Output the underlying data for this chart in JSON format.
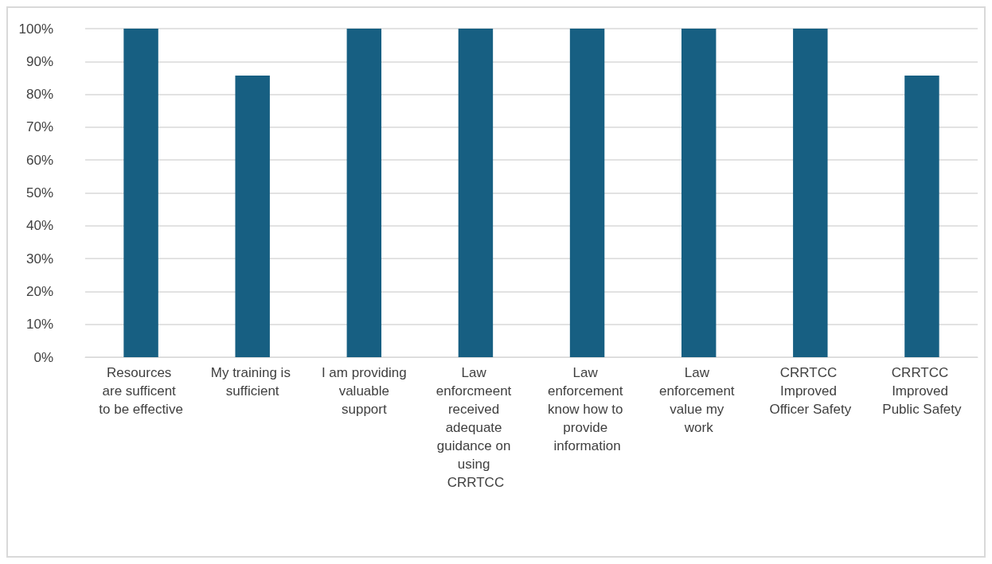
{
  "chart_data": {
    "type": "bar",
    "categories": [
      "Resources are sufficent to be effective",
      "My training is sufficient",
      "I am providing valuable support",
      "Law enforcmeent received adequate guidance on using CRRTCC",
      "Law enforcement know how to provide information",
      "Law enforcement value my work",
      "CRRTCC Improved Officer Safety",
      "CRRTCC Improved Public Safety"
    ],
    "values": [
      100,
      85.7,
      100,
      100,
      100,
      100,
      100,
      85.7
    ],
    "color": "#175f82",
    "ylim": [
      0,
      100
    ],
    "yticks": [
      {
        "value": 0,
        "label": "0%"
      },
      {
        "value": 10,
        "label": "10%"
      },
      {
        "value": 20,
        "label": "20%"
      },
      {
        "value": 30,
        "label": "30%"
      },
      {
        "value": 40,
        "label": "40%"
      },
      {
        "value": 50,
        "label": "50%"
      },
      {
        "value": 60,
        "label": "60%"
      },
      {
        "value": 70,
        "label": "70%"
      },
      {
        "value": 80,
        "label": "80%"
      },
      {
        "value": 90,
        "label": "90%"
      },
      {
        "value": 100,
        "label": "100%"
      }
    ],
    "grid": "y"
  }
}
